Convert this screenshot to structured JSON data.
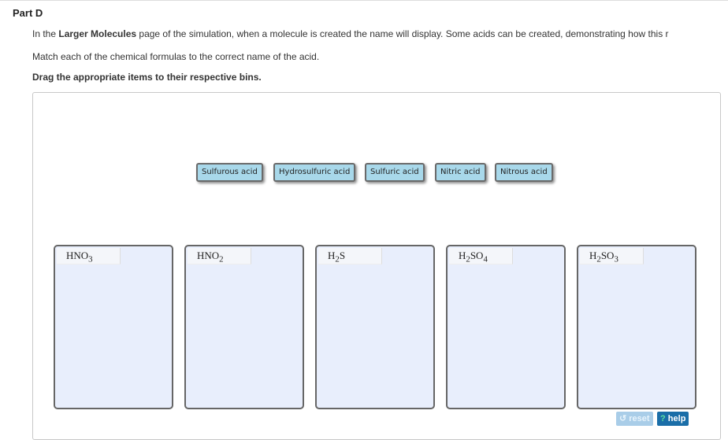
{
  "part_title": "Part D",
  "instructions": {
    "line1_pre": "In the ",
    "line1_bold": "Larger Molecules",
    "line1_post": " page of the simulation, when a molecule is created the name will display. Some acids can be created, demonstrating how this r",
    "line2": "Match each of the chemical formulas to the correct name of the acid.",
    "line3": "Drag the appropriate items to their respective bins."
  },
  "items": [
    "Sulfurous acid",
    "Hydrosulfuric acid",
    "Sulfuric acid",
    "Nitric acid",
    "Nitrous acid"
  ],
  "bins": [
    {
      "base": "HNO",
      "sub": "3",
      "rest": ""
    },
    {
      "base": "HNO",
      "sub": "2",
      "rest": ""
    },
    {
      "base": "H",
      "sub": "2",
      "rest": "S",
      "sub2": ""
    },
    {
      "base": "H",
      "sub": "2",
      "rest": "SO",
      "sub2": "4"
    },
    {
      "base": "H",
      "sub": "2",
      "rest": "SO",
      "sub2": "3"
    }
  ],
  "controls": {
    "reset_icon": "undo-icon",
    "reset": "reset",
    "help_icon": "?",
    "help": "help"
  },
  "colors": {
    "item_bg": "#a8d8ea",
    "bin_bg": "#e8eefc",
    "help_bg": "#1a6ea8"
  }
}
